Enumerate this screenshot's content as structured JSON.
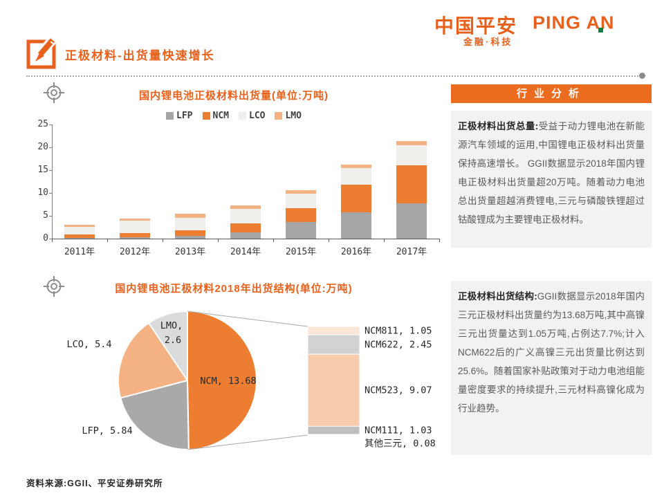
{
  "header": {
    "title": "正极材料-出货量快速增长"
  },
  "logo": {
    "cn": "中国平安",
    "en": "PING AN",
    "tagline": "金融·科技"
  },
  "colors": {
    "brand_orange": "#E8611C",
    "chart_orange": "#ED7D31",
    "light_orange": "#F4B183",
    "gray": "#A6A6A6",
    "panel_bg": "#F2F2F2",
    "header_bar_bg": "#EC6C1F",
    "logo_green": "#0E8040"
  },
  "chart_data": [
    {
      "type": "bar",
      "stacked": true,
      "title": "国内锂电池正极材料出货量(单位:万吨)",
      "categories": [
        "2011年",
        "2012年",
        "2013年",
        "2014年",
        "2015年",
        "2016年",
        "2017年"
      ],
      "series": [
        {
          "name": "LFP",
          "color": "#A6A6A6",
          "values": [
            0.2,
            0.3,
            0.6,
            1.4,
            3.6,
            5.7,
            7.7
          ]
        },
        {
          "name": "NCM",
          "color": "#ED7D31",
          "values": [
            0.7,
            0.9,
            1.2,
            2.0,
            3.0,
            6.1,
            8.4
          ]
        },
        {
          "name": "LCO",
          "color": "#F1EFEC",
          "values": [
            1.7,
            2.7,
            2.8,
            3.1,
            3.3,
            3.6,
            4.3
          ]
        },
        {
          "name": "LMO",
          "color": "#F4B183",
          "values": [
            0.5,
            0.5,
            0.8,
            0.7,
            0.7,
            0.8,
            0.9
          ]
        }
      ],
      "ylim": [
        0,
        25
      ],
      "yticks": [
        0,
        5,
        10,
        15,
        20,
        25
      ],
      "legend_position": "top",
      "grid": false
    },
    {
      "type": "pie",
      "title": "国内锂电池正极材料2018年出货结构(单位:万吨)",
      "slices": [
        {
          "name": "NCM",
          "value": 13.68,
          "color": "#ED7D31",
          "label": "NCM, 13.68"
        },
        {
          "name": "LFP",
          "value": 5.84,
          "color": "#A9A9A9",
          "label": "LFP, 5.84"
        },
        {
          "name": "LCO",
          "value": 5.4,
          "color": "#F4B183",
          "label": "LCO, 5.4"
        },
        {
          "name": "LMO",
          "value": 2.6,
          "color": "#DBDBDB",
          "label": "LMO,\n2.6"
        }
      ],
      "breakout": {
        "of": "NCM",
        "segments": [
          {
            "name": "NCM811",
            "value": 1.05,
            "color": "#FBE5D6",
            "label": "NCM811, 1.05"
          },
          {
            "name": "NCM622",
            "value": 2.45,
            "color": "#D2D2D2",
            "label": "NCM622, 2.45"
          },
          {
            "name": "NCM523",
            "value": 9.07,
            "color": "#F8CBAD",
            "label": "NCM523, 9.07"
          },
          {
            "name": "NCM111",
            "value": 1.03,
            "color": "#BFBFBF",
            "label": "NCM111, 1.03"
          },
          {
            "name": "其他三元",
            "value": 0.08,
            "color": "#E8E8E8",
            "label": "其他三元, 0.08"
          }
        ]
      }
    }
  ],
  "analysis": {
    "header": "行业分析",
    "block1_lead": "正极材料出货总量:",
    "block1_text": "受益于动力锂电池在新能源汽车领域的运用,中国锂电正极材料出货量保持高速增长。 GGII数据显示2018年国内锂电正极材料出货量超20万吨。随着动力电池总出货量超越消费锂电,三元与磷酸铁锂超过钴酸锂成为主要锂电正极材料。",
    "block2_lead": "正极材料出货结构:",
    "block2_text": "GGII数据显示2018年国内三元正极材料出货量约为13.68万吨,其中高镍三元出货量达到1.05万吨,占例达7.7%;计入NCM622后的广义高镍三元出货量比例达到25.6%。随着国家补贴政策对于动力电池组能量密度要求的持续提升,三元材料高镍化成为行业趋势。"
  },
  "footer": {
    "source": "资料来源:GGII、平安证券研究所"
  }
}
